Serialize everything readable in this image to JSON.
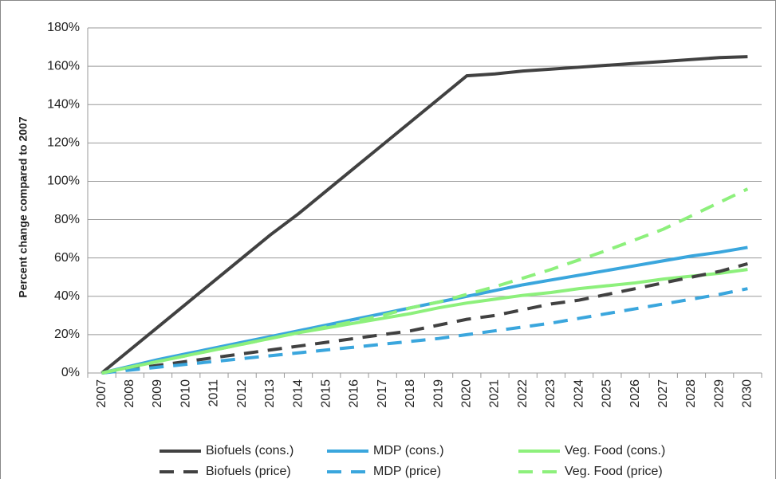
{
  "chart_data": {
    "type": "line",
    "y_label": "Percent change compared to 2007",
    "categories": [
      "2007",
      "2008",
      "2009",
      "2010",
      "2011",
      "2012",
      "2013",
      "2014",
      "2015",
      "2016",
      "2017",
      "2018",
      "2019",
      "2020",
      "2021",
      "2022",
      "2023",
      "2024",
      "2025",
      "2026",
      "2027",
      "2028",
      "2029",
      "2030"
    ],
    "series": [
      {
        "name": "Biofuels (cons.)",
        "color": "#414141",
        "dashed": false,
        "values": [
          0,
          12,
          24,
          36,
          48,
          60,
          72,
          83,
          95,
          107,
          119,
          131,
          143,
          155,
          156,
          157.5,
          158.5,
          159.5,
          160.5,
          161.5,
          162.5,
          163.5,
          164.5,
          165
        ]
      },
      {
        "name": "MDP (cons.)",
        "color": "#3aa6dd",
        "dashed": false,
        "values": [
          0,
          3.5,
          7,
          10,
          13,
          16,
          19,
          22,
          25,
          28,
          31,
          34,
          37,
          40,
          43,
          46,
          48.5,
          51,
          53.5,
          56,
          58.5,
          61,
          63,
          65.5
        ]
      },
      {
        "name": "Veg. Food (cons.)",
        "color": "#8df07c",
        "dashed": false,
        "values": [
          0,
          3,
          6,
          9,
          12,
          15,
          18,
          21,
          23.5,
          26,
          28.5,
          31,
          34,
          36.5,
          38.5,
          40.5,
          42,
          44,
          45.5,
          47,
          49,
          50.5,
          52,
          54
        ]
      },
      {
        "name": "Biofuels (price)",
        "color": "#414141",
        "dashed": true,
        "values": [
          0,
          2,
          4,
          6,
          8,
          10,
          12,
          14,
          16,
          18,
          20,
          22,
          25,
          28,
          30,
          33,
          36,
          38,
          41,
          44,
          47,
          50,
          53,
          57
        ]
      },
      {
        "name": "MDP (price)",
        "color": "#3aa6dd",
        "dashed": true,
        "values": [
          0,
          1.5,
          3,
          4.5,
          6,
          7.5,
          9,
          10.5,
          12,
          13.5,
          15,
          16.5,
          18,
          20,
          22,
          24,
          26,
          28.5,
          31,
          33.5,
          36,
          38.5,
          41,
          44
        ]
      },
      {
        "name": "Veg. Food (price)",
        "color": "#8df07c",
        "dashed": true,
        "values": [
          0,
          3,
          6,
          9,
          12,
          15,
          18,
          21,
          24,
          27,
          30,
          34,
          37,
          41,
          45,
          49.5,
          54,
          59,
          64,
          69.5,
          75,
          82,
          89,
          96
        ]
      }
    ],
    "ylim": [
      0,
      180
    ],
    "yticks": [
      {
        "value": 0,
        "label": "0%"
      },
      {
        "value": 20,
        "label": "20%"
      },
      {
        "value": 40,
        "label": "40%"
      },
      {
        "value": 60,
        "label": "60%"
      },
      {
        "value": 80,
        "label": "80%"
      },
      {
        "value": 100,
        "label": "100%"
      },
      {
        "value": 120,
        "label": "120%"
      },
      {
        "value": 140,
        "label": "140%"
      },
      {
        "value": 160,
        "label": "160%"
      },
      {
        "value": 180,
        "label": "180%"
      }
    ],
    "grid": true,
    "legend": "bottom"
  }
}
